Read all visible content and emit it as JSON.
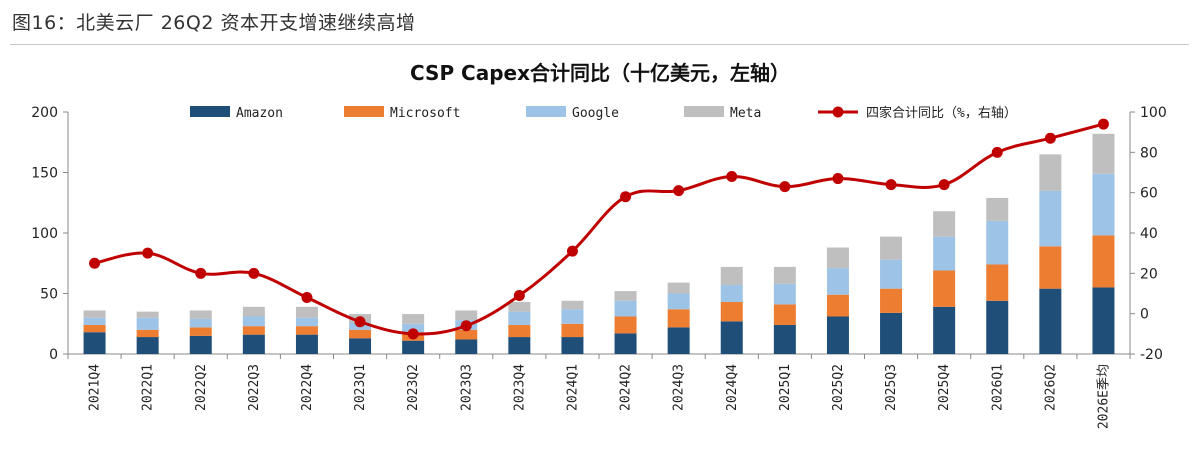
{
  "figure_title": "图16：北美云厂 26Q2 资本开支增速继续高增",
  "chart_data": {
    "type": "bar",
    "stacked": true,
    "title": "CSP Capex合计同比（十亿美元，左轴）",
    "categories": [
      "2021Q4",
      "2022Q1",
      "2022Q2",
      "2022Q3",
      "2022Q4",
      "2023Q1",
      "2023Q2",
      "2023Q3",
      "2023Q4",
      "2024Q1",
      "2024Q2",
      "2024Q3",
      "2024Q4",
      "2025Q1",
      "2025Q2",
      "2025Q3",
      "2025Q4",
      "2026Q1",
      "2026Q2",
      "2026E季均"
    ],
    "series": [
      {
        "name": "Amazon",
        "color": "#1f4e79",
        "values": [
          18,
          14,
          15,
          16,
          16,
          13,
          11,
          12,
          14,
          14,
          17,
          22,
          27,
          24,
          31,
          34,
          39,
          44,
          54,
          55
        ]
      },
      {
        "name": "Microsoft",
        "color": "#ed7d31",
        "values": [
          6,
          6,
          7,
          7,
          7,
          7,
          7,
          8,
          10,
          11,
          14,
          15,
          16,
          17,
          18,
          20,
          30,
          30,
          35,
          43
        ]
      },
      {
        "name": "Google",
        "color": "#9dc3e6",
        "values": [
          6,
          10,
          7,
          8,
          7,
          6,
          7,
          8,
          11,
          12,
          13,
          13,
          14,
          17,
          22,
          24,
          28,
          36,
          46,
          51
        ]
      },
      {
        "name": "Meta",
        "color": "#bfbfbf",
        "values": [
          6,
          5,
          7,
          8,
          9,
          7,
          8,
          8,
          8,
          7,
          8,
          9,
          15,
          14,
          17,
          19,
          21,
          19,
          30,
          33
        ]
      }
    ],
    "line": {
      "name": "四家合计同比（%，右轴）",
      "color": "#c00000",
      "values": [
        25,
        30,
        20,
        20,
        8,
        -4,
        -10,
        -6,
        9,
        31,
        58,
        61,
        68,
        63,
        67,
        64,
        64,
        80,
        87,
        94
      ]
    },
    "y_left": {
      "min": 0,
      "max": 200,
      "ticks": [
        0,
        50,
        100,
        150,
        200
      ]
    },
    "y_right": {
      "min": -20,
      "max": 100,
      "ticks": [
        -20,
        0,
        20,
        40,
        60,
        80,
        100
      ]
    },
    "legend_position": "top"
  }
}
